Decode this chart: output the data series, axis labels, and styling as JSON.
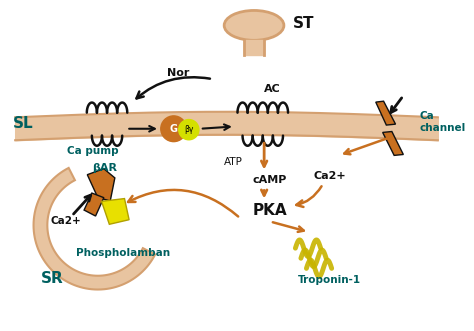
{
  "bg_color": "#ffffff",
  "membrane_color": "#e8c4a0",
  "membrane_stroke": "#d4a070",
  "arrow_color": "#c87020",
  "black": "#111111",
  "text_color_teal": "#006060",
  "labels": {
    "ST": "ST",
    "Nor": "Nor",
    "AC": "AC",
    "SL": "SL",
    "BAR": "βAR",
    "ATP": "ATP",
    "cAMP": "cAMP",
    "PKA": "PKA",
    "Ca2plus": "Ca2+",
    "Ca_channel": "Ca\nchannel",
    "Ca_pump": "Ca pump",
    "Phospholamban": "Phospholamban",
    "Troponin": "Troponin-1",
    "SR": "SR",
    "G": "G",
    "BY": "βγ"
  },
  "figsize": [
    4.74,
    3.31
  ],
  "dpi": 100
}
